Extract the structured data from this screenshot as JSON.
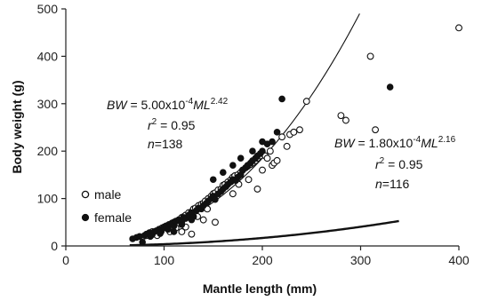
{
  "chart_data": {
    "type": "scatter",
    "xlabel": "Mantle length (mm)",
    "ylabel": "Body weight (g)",
    "xlim": [
      0,
      400
    ],
    "ylim": [
      0,
      500
    ],
    "xticks": [
      "0",
      "100",
      "200",
      "300",
      "400"
    ],
    "yticks": [
      "0",
      "100",
      "200",
      "300",
      "400",
      "500"
    ],
    "legend": {
      "placement": "lower-left",
      "entries": [
        "male",
        "female"
      ]
    },
    "series": [
      {
        "name": "male",
        "marker": "open-circle",
        "points": [
          [
            78,
            18
          ],
          [
            82,
            22
          ],
          [
            85,
            25
          ],
          [
            88,
            30
          ],
          [
            92,
            28
          ],
          [
            95,
            35
          ],
          [
            98,
            38
          ],
          [
            100,
            40
          ],
          [
            102,
            42
          ],
          [
            105,
            45
          ],
          [
            108,
            48
          ],
          [
            110,
            50
          ],
          [
            112,
            52
          ],
          [
            115,
            55
          ],
          [
            118,
            60
          ],
          [
            120,
            62
          ],
          [
            122,
            65
          ],
          [
            125,
            70
          ],
          [
            128,
            72
          ],
          [
            130,
            78
          ],
          [
            132,
            80
          ],
          [
            135,
            85
          ],
          [
            138,
            88
          ],
          [
            140,
            90
          ],
          [
            142,
            95
          ],
          [
            145,
            100
          ],
          [
            148,
            105
          ],
          [
            150,
            110
          ],
          [
            152,
            112
          ],
          [
            155,
            118
          ],
          [
            158,
            120
          ],
          [
            160,
            128
          ],
          [
            162,
            130
          ],
          [
            165,
            135
          ],
          [
            168,
            140
          ],
          [
            170,
            145
          ],
          [
            172,
            148
          ],
          [
            175,
            150
          ],
          [
            178,
            155
          ],
          [
            180,
            160
          ],
          [
            183,
            165
          ],
          [
            185,
            168
          ],
          [
            188,
            172
          ],
          [
            190,
            175
          ],
          [
            193,
            180
          ],
          [
            195,
            185
          ],
          [
            198,
            190
          ],
          [
            200,
            195
          ],
          [
            203,
            190
          ],
          [
            205,
            185
          ],
          [
            208,
            200
          ],
          [
            210,
            170
          ],
          [
            212,
            175
          ],
          [
            195,
            120
          ],
          [
            220,
            230
          ],
          [
            225,
            210
          ],
          [
            228,
            235
          ],
          [
            232,
            240
          ],
          [
            238,
            245
          ],
          [
            245,
            305
          ],
          [
            280,
            275
          ],
          [
            285,
            265
          ],
          [
            310,
            400
          ],
          [
            315,
            245
          ],
          [
            400,
            460
          ],
          [
            118,
            30
          ],
          [
            128,
            25
          ],
          [
            140,
            55
          ],
          [
            152,
            50
          ],
          [
            112,
            38
          ],
          [
            122,
            40
          ],
          [
            134,
            62
          ],
          [
            144,
            78
          ],
          [
            170,
            110
          ],
          [
            176,
            130
          ],
          [
            186,
            140
          ],
          [
            200,
            160
          ],
          [
            215,
            180
          ],
          [
            93,
            22
          ],
          [
            106,
            30
          ]
        ]
      },
      {
        "name": "female",
        "marker": "filled-circle",
        "points": [
          [
            68,
            15
          ],
          [
            72,
            18
          ],
          [
            75,
            20
          ],
          [
            78,
            8
          ],
          [
            80,
            22
          ],
          [
            82,
            25
          ],
          [
            85,
            28
          ],
          [
            88,
            24
          ],
          [
            90,
            30
          ],
          [
            92,
            32
          ],
          [
            95,
            35
          ],
          [
            97,
            30
          ],
          [
            100,
            38
          ],
          [
            102,
            42
          ],
          [
            104,
            35
          ],
          [
            106,
            45
          ],
          [
            108,
            48
          ],
          [
            110,
            42
          ],
          [
            112,
            52
          ],
          [
            115,
            55
          ],
          [
            118,
            50
          ],
          [
            120,
            60
          ],
          [
            122,
            58
          ],
          [
            125,
            65
          ],
          [
            128,
            70
          ],
          [
            130,
            62
          ],
          [
            133,
            75
          ],
          [
            135,
            80
          ],
          [
            138,
            78
          ],
          [
            140,
            85
          ],
          [
            143,
            90
          ],
          [
            145,
            95
          ],
          [
            148,
            100
          ],
          [
            150,
            105
          ],
          [
            152,
            98
          ],
          [
            155,
            110
          ],
          [
            158,
            115
          ],
          [
            160,
            120
          ],
          [
            163,
            125
          ],
          [
            165,
            130
          ],
          [
            168,
            135
          ],
          [
            170,
            140
          ],
          [
            173,
            138
          ],
          [
            175,
            145
          ],
          [
            178,
            150
          ],
          [
            180,
            160
          ],
          [
            183,
            165
          ],
          [
            185,
            170
          ],
          [
            188,
            175
          ],
          [
            190,
            180
          ],
          [
            193,
            185
          ],
          [
            195,
            190
          ],
          [
            198,
            195
          ],
          [
            200,
            200
          ],
          [
            205,
            215
          ],
          [
            210,
            220
          ],
          [
            215,
            240
          ],
          [
            220,
            310
          ],
          [
            330,
            335
          ],
          [
            150,
            140
          ],
          [
            160,
            155
          ],
          [
            170,
            170
          ],
          [
            178,
            185
          ],
          [
            200,
            220
          ],
          [
            190,
            200
          ],
          [
            110,
            30
          ],
          [
            118,
            45
          ],
          [
            128,
            55
          ],
          [
            86,
            20
          ],
          [
            96,
            26
          ]
        ]
      }
    ],
    "curves": [
      {
        "equation_label": "BW = 5.00x10^-4 ML^2.42",
        "r2": "0.95",
        "n": "138",
        "a": 0.0005,
        "b": 2.42,
        "style": "thin",
        "x_range": [
          65,
          300
        ]
      },
      {
        "equation_label": "BW = 1.80x10^-4 ML^2.16",
        "r2": "0.95",
        "n": "116",
        "a": 0.00018,
        "b": 2.16,
        "style": "thick",
        "x_range": [
          65,
          340
        ]
      }
    ]
  },
  "annotations": {
    "eq1": {
      "prefix": "BW",
      "coef": " = 5.00x10",
      "exp1": "-4",
      "var": "ML",
      "exp2": "2.42",
      "r2_prefix": "r",
      "r2_sup": "2",
      "r2_value": " = 0.95",
      "n_prefix": "n",
      "n_value": "=138"
    },
    "eq2": {
      "prefix": "BW",
      "coef": " = 1.80x10",
      "exp1": "-4",
      "var": "ML",
      "exp2": "2.16",
      "r2_prefix": "r",
      "r2_sup": "2",
      "r2_value": " = 0.95",
      "n_prefix": "n",
      "n_value": "=116"
    }
  },
  "colors": {
    "axis": "#222222",
    "marker": "#111111",
    "curve": "#111111",
    "background": "#ffffff"
  }
}
